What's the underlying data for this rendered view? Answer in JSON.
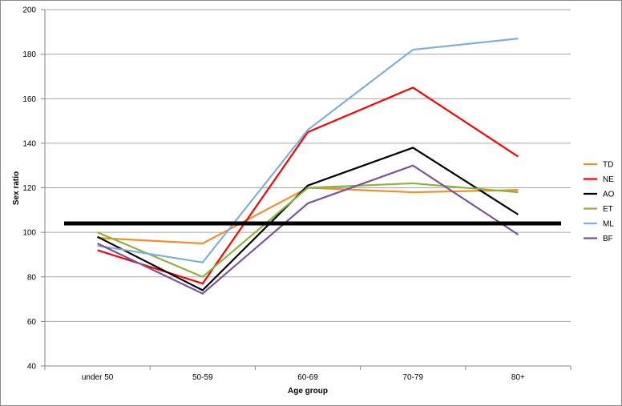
{
  "chart_data": {
    "type": "line",
    "title": "",
    "xlabel": "Age group",
    "ylabel": "Sex ratio",
    "categories": [
      "under 50",
      "50-59",
      "60-69",
      "70-79",
      "80+"
    ],
    "ylim": [
      40,
      200
    ],
    "yticks": [
      40,
      60,
      80,
      100,
      120,
      140,
      160,
      180,
      200
    ],
    "grid": true,
    "legend_position": "right",
    "series": [
      {
        "name": "TD",
        "color": "#f28e2b",
        "values": [
          97.5,
          95,
          120,
          118,
          119
        ]
      },
      {
        "name": "NE",
        "color": "#ff0000",
        "values": [
          92,
          77,
          145,
          165,
          134
        ]
      },
      {
        "name": "AO",
        "color": "#000000",
        "values": [
          98,
          74,
          121,
          138,
          108
        ]
      },
      {
        "name": "ET",
        "color": "#8cb43c",
        "values": [
          100,
          80,
          120,
          122,
          118
        ]
      },
      {
        "name": "ML",
        "color": "#7faedc",
        "values": [
          94,
          86.5,
          146,
          182,
          187
        ]
      },
      {
        "name": "BF",
        "color": "#7a559c",
        "values": [
          95,
          72.5,
          113,
          130,
          99
        ]
      }
    ],
    "reference_line": {
      "value": 104,
      "color": "#000000"
    }
  }
}
